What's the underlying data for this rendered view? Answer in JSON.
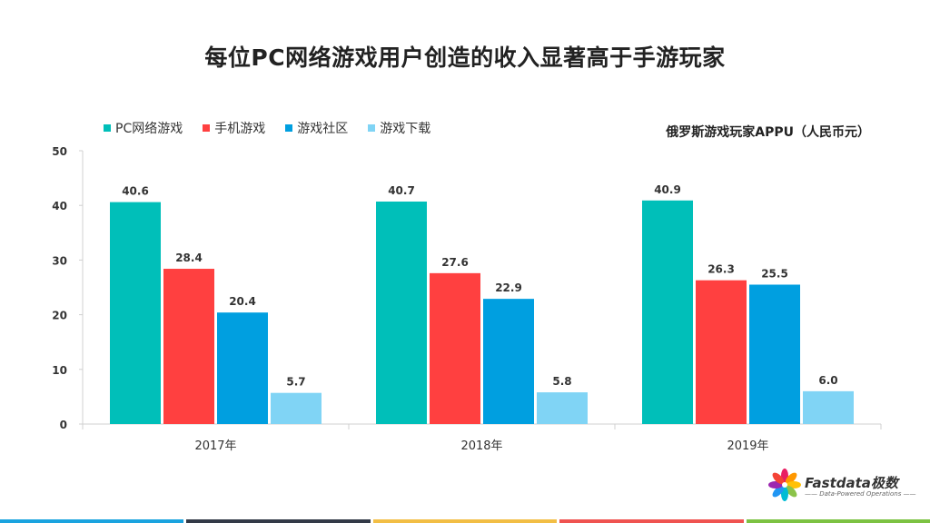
{
  "title": "每位PC网络游戏用户创造的收入显著高于手游玩家",
  "unit_label": "俄罗斯游戏玩家APPU（人民币元）",
  "chart_data": {
    "type": "bar",
    "categories": [
      "2017年",
      "2018年",
      "2019年"
    ],
    "series": [
      {
        "name": "PC网络游戏",
        "color": "#00BFB9",
        "values": [
          40.6,
          40.7,
          40.9
        ]
      },
      {
        "name": "手机游戏",
        "color": "#FF4040",
        "values": [
          28.4,
          27.6,
          26.3
        ]
      },
      {
        "name": "游戏社区",
        "color": "#009FE0",
        "values": [
          20.4,
          22.9,
          25.5
        ]
      },
      {
        "name": "游戏下载",
        "color": "#80D4F5",
        "values": [
          5.7,
          5.8,
          6.0
        ]
      }
    ],
    "ylim": [
      0,
      50
    ],
    "yticks": [
      0,
      10,
      20,
      30,
      40,
      50
    ],
    "value_labels": [
      [
        "40.6",
        "40.7",
        "40.9"
      ],
      [
        "28.4",
        "27.6",
        "26.3"
      ],
      [
        "20.4",
        "22.9",
        "25.5"
      ],
      [
        "5.7",
        "5.8",
        "6.0"
      ]
    ],
    "legend_position": "top-left",
    "grid": false
  },
  "logo": {
    "name": "Fastdata极数",
    "tagline": "—— Data-Powered Operations ——"
  },
  "footer_colors": [
    "#1AA3DF",
    "#333A47",
    "#F2BE45",
    "#EF5350",
    "#7CC242"
  ]
}
